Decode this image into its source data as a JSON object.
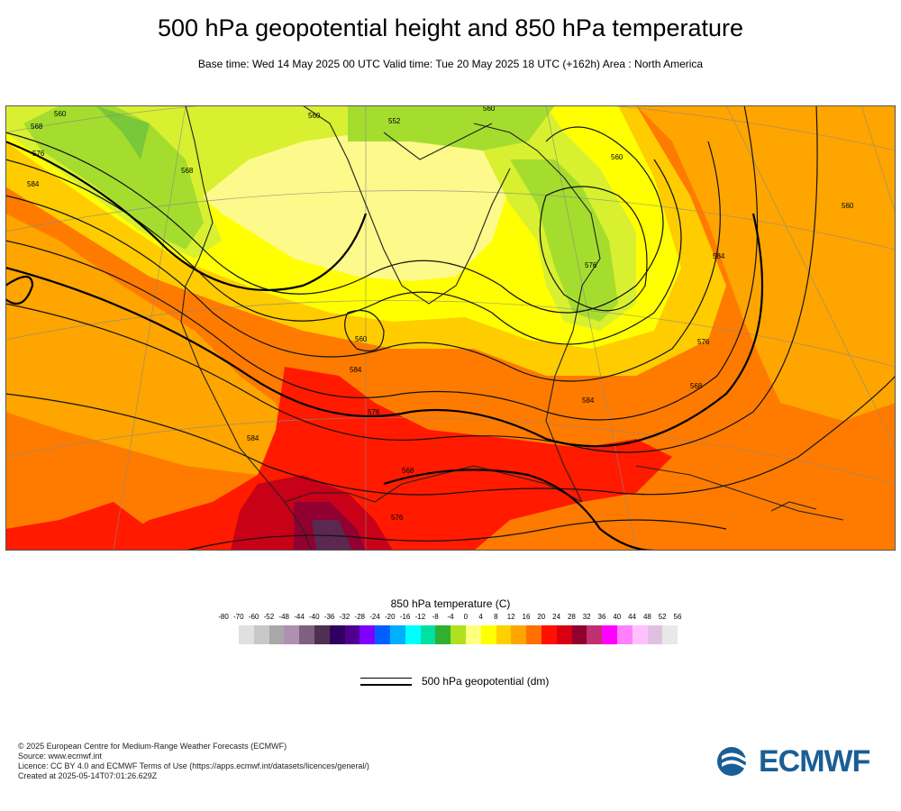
{
  "header": {
    "title": "500 hPa geopotential height and 850 hPa temperature",
    "subtitle": "Base time: Wed 14 May 2025 00 UTC Valid time: Tue 20 May 2025 18 UTC (+162h) Area : North America"
  },
  "map": {
    "contour_labels": [
      "560",
      "568",
      "576",
      "584",
      "560",
      "552",
      "560",
      "568",
      "576",
      "584",
      "576",
      "568",
      "560",
      "560",
      "584",
      "584",
      "576",
      "568",
      "576",
      "584",
      "560"
    ],
    "colors": {
      "green": "#a5dd2e",
      "yellow_green": "#d8f02f",
      "pale_yellow": "#fdf98a",
      "yellow": "#ffff00",
      "gold": "#ffcc00",
      "orange_light": "#ffa500",
      "orange": "#ff7b00",
      "red": "#ff1a00",
      "dark_red": "#c80018",
      "maroon": "#900030",
      "purple": "#5a2850"
    }
  },
  "colorbar": {
    "title": "850 hPa temperature (C)",
    "ticks": [
      "-80",
      "-70",
      "-60",
      "-52",
      "-48",
      "-44",
      "-40",
      "-36",
      "-32",
      "-28",
      "-24",
      "-20",
      "-16",
      "-12",
      "-8",
      "-4",
      "0",
      "4",
      "8",
      "12",
      "16",
      "20",
      "24",
      "28",
      "32",
      "36",
      "40",
      "44",
      "48",
      "52",
      "56"
    ],
    "colors": [
      "#e0e0e0",
      "#c8c8c8",
      "#a8a8a8",
      "#b090b0",
      "#806080",
      "#503050",
      "#300060",
      "#500090",
      "#8000ff",
      "#0060ff",
      "#00b0ff",
      "#00ffff",
      "#00e0a0",
      "#30b030",
      "#b0e020",
      "#ffff80",
      "#ffff00",
      "#ffd000",
      "#ffa500",
      "#ff7000",
      "#ff1000",
      "#d80010",
      "#900030",
      "#c03070",
      "#ff00ff",
      "#ff80ff",
      "#ffc0ff",
      "#e0c0e0",
      "#e8e8e8"
    ]
  },
  "legend": {
    "label": "500 hPa geopotential (dm)"
  },
  "footer": {
    "line1": "© 2025 European Centre for Medium-Range Weather Forecasts (ECMWF)",
    "line2": "Source: www.ecmwf.int",
    "line3": "Licence: CC BY 4.0 and ECMWF Terms of Use (https://apps.ecmwf.int/datasets/licences/general/)",
    "line4": "Created at 2025-05-14T07:01:26.629Z"
  },
  "logo": {
    "text": "ECMWF",
    "color": "#1a5e96"
  }
}
